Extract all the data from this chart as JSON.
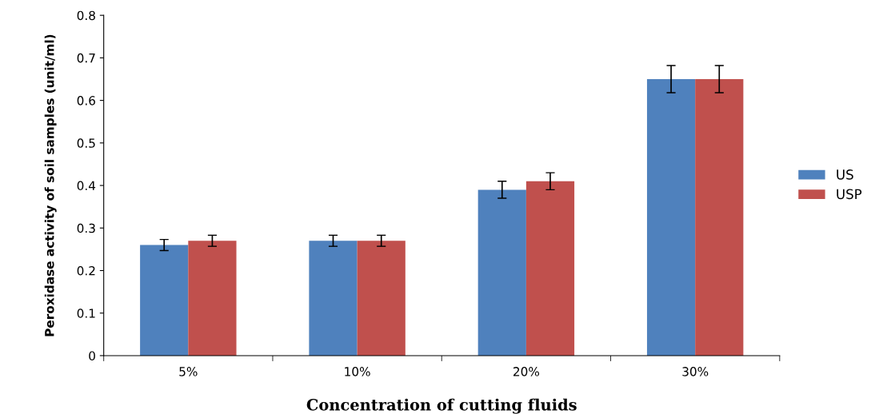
{
  "chart_data": {
    "type": "bar",
    "xlabel": "Concentration of cutting fluids",
    "ylabel": "Peroxidase activity of soil samples (unit/ml)",
    "categories": [
      "5%",
      "10%",
      "20%",
      "30%"
    ],
    "series": [
      {
        "name": "US",
        "color": "#4f81bd",
        "values": [
          0.26,
          0.27,
          0.39,
          0.65
        ],
        "errors": [
          0.013,
          0.013,
          0.02,
          0.032
        ]
      },
      {
        "name": "USP",
        "color": "#c0504d",
        "values": [
          0.27,
          0.27,
          0.41,
          0.65
        ],
        "errors": [
          0.013,
          0.013,
          0.02,
          0.032
        ]
      }
    ],
    "ylim": [
      0,
      0.8
    ],
    "yticks": [
      {
        "value": 0,
        "label": "0"
      },
      0.1,
      0.2,
      0.3,
      0.4,
      0.5,
      0.6,
      0.7,
      0.8
    ],
    "grid": false,
    "legend": "right"
  }
}
